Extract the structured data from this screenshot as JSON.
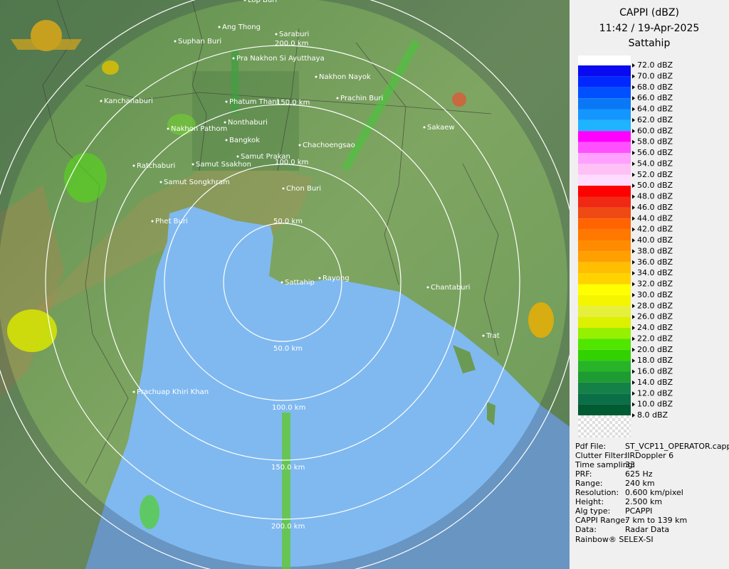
{
  "header": {
    "title": "CAPPI (dBZ)",
    "time": "11:42 / 19-Apr-2025",
    "site": "Sattahip"
  },
  "legend": {
    "labels": [
      "72.0 dBZ",
      "70.0 dBZ",
      "68.0 dBZ",
      "66.0 dBZ",
      "64.0 dBZ",
      "62.0 dBZ",
      "60.0 dBZ",
      "58.0 dBZ",
      "56.0 dBZ",
      "54.0 dBZ",
      "52.0 dBZ",
      "50.0 dBZ",
      "48.0 dBZ",
      "46.0 dBZ",
      "44.0 dBZ",
      "42.0 dBZ",
      "40.0 dBZ",
      "38.0 dBZ",
      "36.0 dBZ",
      "34.0 dBZ",
      "32.0 dBZ",
      "30.0 dBZ",
      "28.0 dBZ",
      "26.0 dBZ",
      "24.0 dBZ",
      "22.0 dBZ",
      "20.0 dBZ",
      "18.0 dBZ",
      "16.0 dBZ",
      "14.0 dBZ",
      "12.0 dBZ",
      "10.0 dBZ",
      "8.0 dBZ"
    ],
    "colors": [
      "#0a0af0",
      "#0028ff",
      "#0050ff",
      "#0a78f5",
      "#1496ff",
      "#1eb4ff",
      "#ff00ff",
      "#ff50ff",
      "#ffa0ff",
      "#ffc0f5",
      "#ffdcff",
      "#ff0000",
      "#f02814",
      "#f04a14",
      "#ff6400",
      "#ff7800",
      "#ff8c00",
      "#ffa000",
      "#ffbe00",
      "#ffd200",
      "#ffff00",
      "#f5f500",
      "#e6f03c",
      "#dcf000",
      "#96f000",
      "#50e600",
      "#32d200",
      "#28b428",
      "#1e9b32",
      "#148246",
      "#0a6e46",
      "#005a32",
      "#e6e6e6"
    ]
  },
  "info": [
    [
      "Pdf File:",
      "ST_VCP11_OPERATOR.cappi"
    ],
    [
      "Clutter Filter:",
      "IIRDoppler 6"
    ],
    [
      "Time sampling:",
      "33"
    ],
    [
      "PRF:",
      "625 Hz"
    ],
    [
      "Range:",
      "240 km"
    ],
    [
      "Resolution:",
      "0.600 km/pixel"
    ],
    [
      "Height:",
      "2.500 km"
    ],
    [
      "Alg type:",
      "PCAPPI"
    ],
    [
      "CAPPI Range:",
      "7 km to 139 km"
    ],
    [
      "Data:",
      "Radar Data"
    ]
  ],
  "credit": "Rainbow® SELEX-SI",
  "map": {
    "places": [
      "Lop Buri",
      "Ang Thong",
      "Saraburi",
      "Suphan Buri",
      "Pra Nakhon Si Ayutthaya",
      "Nakhon Nayok",
      "Prachin Buri",
      "Kanchanaburi",
      "Phatum Thani",
      "Nonthaburi",
      "Sakaew",
      "Nakhon Pathom",
      "Bangkok",
      "Chachoengsao",
      "Samut Prakan",
      "Ratchaburi",
      "Samut Ssakhon",
      "Samut Songkhram",
      "Chon Buri",
      "Phet Buri",
      "Sattahip",
      "Rayong",
      "Chantaburi",
      "Trat",
      "Prachuap Khiri Khan"
    ],
    "range_labels": [
      "200.0 km",
      "150.0 km",
      "100.0 km",
      "50.0 km",
      "50.0 km",
      "100.0 km",
      "150.0 km",
      "200.0 km"
    ]
  }
}
